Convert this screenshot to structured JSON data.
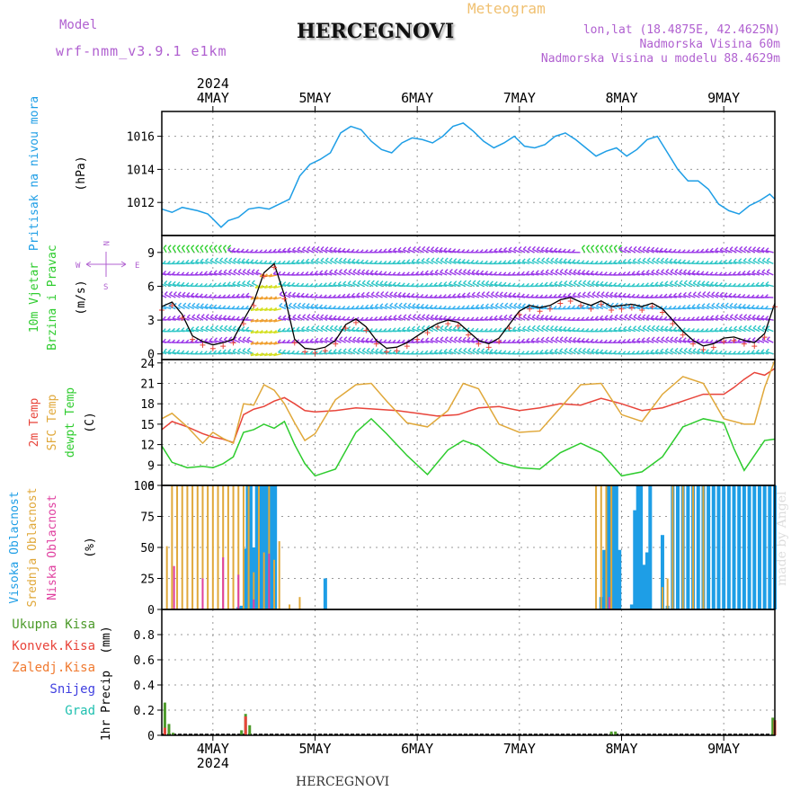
{
  "header": {
    "model_label": "Model",
    "model_name": "wrf-nmm_v3.9.1 e1km",
    "title": "HERCEGNOVI",
    "meteogram_label": "Meteogram",
    "lonlat": "lon,lat (18.4875E, 42.4625N)",
    "elevation": "Nadmorska Visina 60m",
    "model_elevation": "Nadmorska Visina u modelu 88.4629m"
  },
  "footer": {
    "title": "HERCEGNOVI",
    "credit": "made by Angel"
  },
  "days": [
    {
      "label": "4MAY",
      "day": 4
    },
    {
      "label": "5MAY",
      "day": 5
    },
    {
      "label": "6MAY",
      "day": 6
    },
    {
      "label": "7MAY",
      "day": 7
    },
    {
      "label": "8MAY",
      "day": 8
    },
    {
      "label": "9MAY",
      "day": 9
    }
  ],
  "year_label": "2024",
  "colors": {
    "pressure": "#1e9ee6",
    "temp2m": "#e8443a",
    "sfc": "#e0a83a",
    "dew": "#2ecc2e",
    "high_cloud": "#1e9ee6",
    "mid_cloud": "#e0a83a",
    "low_cloud": "#e040a0",
    "total_precip": "#4c9a2a",
    "conv_precip": "#e8443a",
    "frz_precip": "#f07a30",
    "snow": "#4040e0",
    "hail": "#20c0b0",
    "model": "#b060d0",
    "meteogram": "#f0c070"
  },
  "chart_data": [
    {
      "type": "line",
      "id": "pressure",
      "ylabel": "Pritisak na nivou mora",
      "unit": "(hPa)",
      "ylim": [
        1010,
        1017.5
      ],
      "yticks": [
        1012,
        1014,
        1016
      ],
      "grid": true,
      "x_unit": "day of May 2024",
      "series": [
        {
          "x": [
            3.5,
            3.6,
            3.7,
            3.85,
            3.95,
            4.0,
            4.08,
            4.15,
            4.25,
            4.35,
            4.45,
            4.55,
            4.65,
            4.75,
            4.85,
            4.95,
            5.05,
            5.15,
            5.25,
            5.35,
            5.45,
            5.55,
            5.65,
            5.75,
            5.85,
            5.95,
            6.05,
            6.15,
            6.25,
            6.35,
            6.45,
            6.55,
            6.65,
            6.75,
            6.85,
            6.95,
            7.05,
            7.15,
            7.25,
            7.35,
            7.45,
            7.55,
            7.65,
            7.75,
            7.85,
            7.95,
            8.05,
            8.15,
            8.25,
            8.35,
            8.45,
            8.55,
            8.65,
            8.75,
            8.85,
            8.95,
            9.05,
            9.15,
            9.25,
            9.35,
            9.45,
            9.5
          ],
          "y": [
            1011.6,
            1011.4,
            1011.7,
            1011.5,
            1011.3,
            1011.0,
            1010.5,
            1010.9,
            1011.1,
            1011.6,
            1011.7,
            1011.6,
            1011.9,
            1012.2,
            1013.6,
            1014.3,
            1014.6,
            1015.0,
            1016.2,
            1016.6,
            1016.4,
            1015.7,
            1015.2,
            1015.0,
            1015.6,
            1015.9,
            1015.8,
            1015.6,
            1016.0,
            1016.6,
            1016.8,
            1016.3,
            1015.7,
            1015.3,
            1015.6,
            1016.0,
            1015.4,
            1015.3,
            1015.5,
            1016.0,
            1016.2,
            1015.8,
            1015.3,
            1014.8,
            1015.1,
            1015.3,
            1014.8,
            1015.2,
            1015.8,
            1016.0,
            1015.0,
            1014.0,
            1013.3,
            1013.3,
            1012.8,
            1011.9,
            1011.5,
            1011.3,
            1011.8,
            1012.1,
            1012.5,
            1012.2
          ]
        }
      ]
    },
    {
      "type": "line",
      "id": "wind",
      "ylabel": [
        "10m Vjetar",
        "Brzina i Pravac"
      ],
      "unit": "(m/s)",
      "ylim": [
        -0.5,
        10.5
      ],
      "yticks": [
        0,
        3,
        6,
        9
      ],
      "compass": {
        "w": "W",
        "e": "E",
        "n": "N",
        "s": "S"
      },
      "grid": true,
      "series": [
        {
          "name": "wind speed",
          "x": [
            3.5,
            3.6,
            3.7,
            3.8,
            3.9,
            4.0,
            4.1,
            4.2,
            4.3,
            4.4,
            4.5,
            4.6,
            4.7,
            4.8,
            4.9,
            5.0,
            5.1,
            5.2,
            5.3,
            5.4,
            5.5,
            5.6,
            5.7,
            5.8,
            5.9,
            6.0,
            6.1,
            6.2,
            6.3,
            6.4,
            6.5,
            6.6,
            6.7,
            6.8,
            6.9,
            7.0,
            7.1,
            7.2,
            7.3,
            7.4,
            7.5,
            7.6,
            7.7,
            7.8,
            7.9,
            8.0,
            8.1,
            8.2,
            8.3,
            8.4,
            8.5,
            8.6,
            8.7,
            8.8,
            8.9,
            9.0,
            9.1,
            9.2,
            9.3,
            9.4,
            9.5
          ],
          "y": [
            4.2,
            4.6,
            3.5,
            1.6,
            1.1,
            0.8,
            1.0,
            1.3,
            3.0,
            4.6,
            7.2,
            8.0,
            5.2,
            1.3,
            0.5,
            0.4,
            0.6,
            1.2,
            2.6,
            3.1,
            2.4,
            1.2,
            0.5,
            0.6,
            1.0,
            1.6,
            2.2,
            2.7,
            3.0,
            2.8,
            2.0,
            1.2,
            0.9,
            1.4,
            2.6,
            3.8,
            4.3,
            4.1,
            4.3,
            4.8,
            5.0,
            4.6,
            4.3,
            4.7,
            4.2,
            4.3,
            4.4,
            4.2,
            4.5,
            4.0,
            3.0,
            2.0,
            1.2,
            0.7,
            0.9,
            1.4,
            1.5,
            1.2,
            1.0,
            1.8,
            4.5
          ]
        }
      ]
    },
    {
      "type": "line",
      "id": "temperature",
      "ylabel": [
        "2m Temp",
        "SFC Temp",
        "dewpt Temp"
      ],
      "unit": "(C)",
      "ylim": [
        6,
        24.5
      ],
      "yticks": [
        6,
        9,
        12,
        15,
        18,
        21,
        24
      ],
      "grid": true,
      "series": [
        {
          "key": "temp2m",
          "x": [
            3.5,
            3.6,
            3.75,
            3.9,
            4.0,
            4.1,
            4.2,
            4.3,
            4.4,
            4.5,
            4.6,
            4.7,
            4.8,
            4.9,
            5.0,
            5.2,
            5.4,
            5.6,
            5.8,
            6.0,
            6.2,
            6.4,
            6.6,
            6.8,
            7.0,
            7.2,
            7.4,
            7.6,
            7.8,
            8.0,
            8.2,
            8.4,
            8.6,
            8.8,
            9.0,
            9.1,
            9.2,
            9.3,
            9.4,
            9.5
          ],
          "y": [
            14.2,
            15.4,
            14.6,
            13.6,
            13.1,
            12.8,
            12.3,
            16.4,
            17.2,
            17.6,
            18.4,
            18.9,
            18.0,
            17.0,
            16.8,
            17.0,
            17.4,
            17.2,
            17.0,
            16.6,
            16.2,
            16.4,
            17.4,
            17.6,
            17.0,
            17.4,
            18.0,
            17.8,
            18.8,
            18.0,
            17.0,
            17.4,
            18.4,
            19.4,
            19.4,
            20.4,
            21.6,
            22.6,
            22.2,
            23.2
          ]
        },
        {
          "key": "sfc",
          "x": [
            3.5,
            3.6,
            3.75,
            3.9,
            4.0,
            4.1,
            4.2,
            4.3,
            4.4,
            4.5,
            4.6,
            4.7,
            4.8,
            4.9,
            5.0,
            5.2,
            5.4,
            5.55,
            5.7,
            5.9,
            6.1,
            6.3,
            6.45,
            6.6,
            6.8,
            7.0,
            7.2,
            7.4,
            7.6,
            7.8,
            8.0,
            8.2,
            8.4,
            8.6,
            8.8,
            9.0,
            9.2,
            9.3,
            9.4,
            9.5
          ],
          "y": [
            15.8,
            16.6,
            14.6,
            12.2,
            13.8,
            12.9,
            12.2,
            18.0,
            17.8,
            20.8,
            20.0,
            18.0,
            15.2,
            12.6,
            13.6,
            18.6,
            20.8,
            21.0,
            18.4,
            15.2,
            14.6,
            17.0,
            21.0,
            20.2,
            15.0,
            13.8,
            14.0,
            17.4,
            20.8,
            21.0,
            16.4,
            15.4,
            19.4,
            22.0,
            21.0,
            15.8,
            15.0,
            15.0,
            20.4,
            24.4
          ]
        },
        {
          "key": "dew",
          "x": [
            3.5,
            3.6,
            3.75,
            3.9,
            4.0,
            4.1,
            4.2,
            4.3,
            4.4,
            4.5,
            4.6,
            4.7,
            4.8,
            4.9,
            5.0,
            5.2,
            5.4,
            5.55,
            5.7,
            5.9,
            6.1,
            6.3,
            6.45,
            6.6,
            6.8,
            7.0,
            7.2,
            7.4,
            7.6,
            7.8,
            8.0,
            8.2,
            8.4,
            8.6,
            8.8,
            9.0,
            9.1,
            9.2,
            9.3,
            9.4,
            9.5
          ],
          "y": [
            11.8,
            9.4,
            8.6,
            8.8,
            8.6,
            9.2,
            10.2,
            13.8,
            14.2,
            15.0,
            14.4,
            15.4,
            12.0,
            9.2,
            7.4,
            8.4,
            13.8,
            15.8,
            13.6,
            10.4,
            7.6,
            11.2,
            12.6,
            11.8,
            9.4,
            8.6,
            8.4,
            10.8,
            12.2,
            10.8,
            7.4,
            8.0,
            10.2,
            14.6,
            15.8,
            15.2,
            11.4,
            8.2,
            10.4,
            12.6,
            12.8
          ]
        }
      ]
    },
    {
      "type": "bar",
      "id": "clouds",
      "ylabel": [
        "Visoka Oblacnost",
        "Srednja Oblacnost",
        "Niska Oblacnost"
      ],
      "unit": "(%)",
      "ylim": [
        0,
        100
      ],
      "yticks": [
        0,
        25,
        50,
        75,
        100
      ],
      "grid": true,
      "series": [
        {
          "key": "high_cloud",
          "x": [
            4.25,
            4.28,
            4.31,
            4.34,
            4.37,
            4.4,
            4.43,
            4.46,
            4.49,
            4.52,
            4.55,
            4.58,
            4.61,
            5.1,
            7.8,
            7.83,
            7.86,
            7.89,
            7.92,
            7.95,
            7.98,
            8.1,
            8.13,
            8.16,
            8.19,
            8.22,
            8.25,
            8.28,
            8.4,
            8.45,
            8.5,
            8.55,
            8.6,
            8.65,
            8.7,
            8.75,
            8.8,
            8.85,
            8.9,
            8.95,
            9.0,
            9.05,
            9.1,
            9.15,
            9.2,
            9.25,
            9.3,
            9.35,
            9.4,
            9.45,
            9.5
          ],
          "y": [
            2,
            3,
            49,
            100,
            100,
            50,
            100,
            100,
            100,
            100,
            100,
            100,
            100,
            25,
            10,
            48,
            100,
            100,
            100,
            100,
            48,
            4,
            80,
            100,
            100,
            36,
            46,
            100,
            60,
            3,
            100,
            100,
            100,
            100,
            100,
            100,
            100,
            100,
            100,
            100,
            100,
            100,
            100,
            100,
            100,
            100,
            100,
            100,
            100,
            100,
            100
          ]
        },
        {
          "key": "mid_cloud",
          "x": [
            3.55,
            3.6,
            3.65,
            3.7,
            3.75,
            3.8,
            3.85,
            3.9,
            3.95,
            4.0,
            4.05,
            4.1,
            4.15,
            4.2,
            4.25,
            4.3,
            4.35,
            4.4,
            4.45,
            4.5,
            4.55,
            4.6,
            4.65,
            4.75,
            4.85,
            7.75,
            7.8,
            7.85,
            7.9,
            8.4,
            8.45,
            8.5,
            8.6,
            8.7,
            8.8
          ],
          "y": [
            51,
            100,
            100,
            100,
            100,
            100,
            100,
            100,
            100,
            100,
            100,
            100,
            100,
            100,
            100,
            100,
            100,
            30,
            100,
            46,
            100,
            40,
            55,
            4,
            10,
            100,
            100,
            100,
            100,
            18,
            25,
            100,
            100,
            100,
            100
          ]
        },
        {
          "key": "low_cloud",
          "x": [
            3.62,
            3.9,
            4.1,
            4.25,
            4.4,
            4.55,
            7.88
          ],
          "y": [
            35,
            25,
            42,
            28,
            8,
            45,
            10
          ]
        }
      ]
    },
    {
      "type": "bar",
      "id": "precip",
      "ylabel": "1hr Precip",
      "unit": "(mm)",
      "ylim": [
        0,
        1.0
      ],
      "yticks": [
        0,
        0.2,
        0.4,
        0.6,
        0.8
      ],
      "legend": [
        "Ukupna Kisa",
        "Konvek.Kisa",
        "Zaledj.Kisa",
        "Snijeg",
        "Grad"
      ],
      "grid": true,
      "series": [
        {
          "key": "total_precip",
          "x": [
            3.53,
            3.57,
            3.61,
            4.28,
            4.32,
            4.36,
            7.9,
            7.94,
            9.48
          ],
          "y": [
            0.26,
            0.09,
            0.02,
            0.04,
            0.17,
            0.08,
            0.03,
            0.03,
            0.14
          ]
        },
        {
          "key": "conv_precip",
          "x": [
            3.53,
            4.32,
            9.5
          ],
          "y": [
            0.06,
            0.15,
            0.12
          ]
        }
      ]
    }
  ]
}
